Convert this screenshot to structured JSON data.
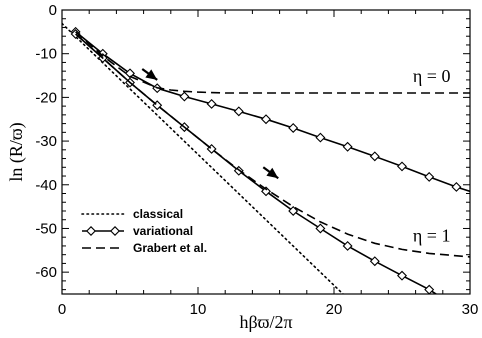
{
  "chart_data": {
    "type": "line",
    "xlabel": "hβϖ/2π",
    "ylabel": "ln (R/ϖ)",
    "xlim": [
      0,
      30
    ],
    "ylim": [
      -65,
      0
    ],
    "xticks": [
      0,
      10,
      20,
      30
    ],
    "yticks": [
      0,
      -10,
      -20,
      -30,
      -40,
      -50,
      -60
    ],
    "xtick_labels": [
      "0",
      "10",
      "20",
      "30"
    ],
    "ytick_labels": [
      "0",
      "-10",
      "-20",
      "-30",
      "-40",
      "-50",
      "-60"
    ],
    "grid": false,
    "legend_position": "bottom-left",
    "annotations": [
      {
        "text": "η = 0",
        "x": 25.8,
        "y": -16.5
      },
      {
        "text": "η = 1",
        "x": 25.8,
        "y": -53.0
      }
    ],
    "arrows": [
      {
        "tip_x": 7.0,
        "tip_y": -16.0,
        "from_x": 5.9,
        "from_y": -13.5
      },
      {
        "tip_x": 15.9,
        "tip_y": -38.5,
        "from_x": 14.8,
        "from_y": -36.0
      }
    ],
    "series": [
      {
        "name": "classical",
        "style": "dotted",
        "color": "#000000",
        "x": [
          0,
          21
        ],
        "y": [
          -3.1,
          -66.0
        ]
      },
      {
        "name": "variational",
        "style": "solid-diamond",
        "color": "#000000",
        "x": [
          1,
          3,
          5,
          7,
          9,
          11,
          13,
          15,
          17,
          19,
          21,
          23,
          25,
          27,
          29,
          30
        ],
        "y": [
          -5.0,
          -10.0,
          -14.5,
          -17.9,
          -19.8,
          -21.5,
          -23.2,
          -25.0,
          -27.0,
          -29.2,
          -31.3,
          -33.5,
          -35.8,
          -38.2,
          -40.5,
          -41.5
        ]
      },
      {
        "name": "variational",
        "style": "solid-diamond",
        "color": "#000000",
        "x": [
          1,
          3,
          5,
          7,
          9,
          11,
          13,
          15,
          17,
          19,
          21,
          23,
          25,
          27,
          28
        ],
        "y": [
          -5.5,
          -11.0,
          -16.6,
          -21.8,
          -26.8,
          -31.8,
          -36.8,
          -41.5,
          -46.0,
          -50.0,
          -54.0,
          -57.5,
          -60.8,
          -64.0,
          -66.0
        ]
      },
      {
        "name": "Grabert et al.",
        "style": "dashed",
        "color": "#000000",
        "x": [
          1,
          3,
          5,
          7,
          8,
          9,
          10,
          12,
          15,
          20,
          25,
          30
        ],
        "y": [
          -5.0,
          -10.5,
          -15.2,
          -17.8,
          -18.3,
          -18.6,
          -18.8,
          -19.0,
          -19.0,
          -19.0,
          -19.0,
          -19.0
        ]
      },
      {
        "name": "Grabert et al.",
        "style": "dashed",
        "color": "#000000",
        "x": [
          1,
          3,
          5,
          7,
          9,
          11,
          13,
          15,
          17,
          19,
          21,
          23,
          25,
          27,
          30
        ],
        "y": [
          -5.5,
          -11.0,
          -16.6,
          -21.8,
          -26.8,
          -31.8,
          -36.6,
          -41.0,
          -45.0,
          -48.5,
          -51.3,
          -53.4,
          -54.8,
          -55.7,
          -56.5
        ]
      }
    ],
    "legend": [
      {
        "label": "classical",
        "style": "dotted"
      },
      {
        "label": "variational",
        "style": "solid-diamond"
      },
      {
        "label": "Grabert et al.",
        "style": "dashed"
      }
    ]
  }
}
